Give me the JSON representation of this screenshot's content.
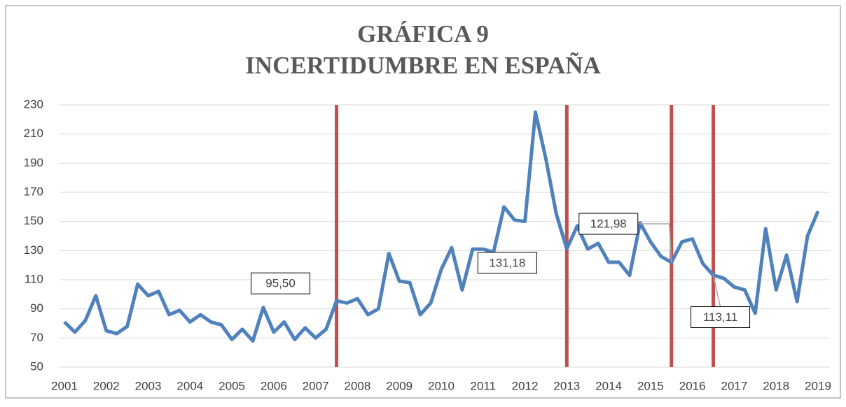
{
  "chart_data": {
    "type": "line",
    "title": [
      "GRÁFICA 9",
      "INCERTIDUMBRE EN ESPAÑA"
    ],
    "categories": [
      "2001",
      null,
      null,
      null,
      "2002",
      null,
      null,
      null,
      "2003",
      null,
      null,
      null,
      "2004",
      null,
      null,
      null,
      "2005",
      null,
      null,
      null,
      "2006",
      null,
      null,
      null,
      "2007",
      null,
      null,
      null,
      "2008",
      null,
      null,
      null,
      "2009",
      null,
      null,
      null,
      "2010",
      null,
      null,
      null,
      "2011",
      null,
      null,
      null,
      "2012",
      null,
      null,
      null,
      "2013",
      null,
      null,
      null,
      "2014",
      null,
      null,
      null,
      "2015",
      null,
      null,
      null,
      "2016",
      null,
      null,
      null,
      "2017",
      null,
      null,
      null,
      "2018",
      null,
      null,
      null,
      "2019"
    ],
    "series": [
      {
        "color": "#4f81bd",
        "values": [
          81,
          74,
          82,
          99,
          75,
          73,
          78,
          107,
          99,
          102,
          86,
          89,
          81,
          86,
          81,
          79,
          69,
          76,
          68,
          91,
          74,
          81,
          69,
          77,
          70,
          76,
          95.5,
          94,
          97,
          86,
          90,
          128,
          109,
          108,
          86,
          94,
          117,
          132,
          103,
          131,
          131,
          129,
          160,
          151,
          150,
          225,
          193,
          155,
          131.18,
          147,
          131,
          135,
          122,
          122,
          113,
          149,
          136,
          126,
          121.98,
          136,
          138,
          121,
          113.11,
          111,
          105,
          103,
          87,
          145,
          103,
          127,
          95,
          140,
          157
        ],
        "value_labels": [
          null,
          null,
          null,
          null,
          null,
          null,
          null,
          null,
          null,
          null,
          null,
          null,
          null,
          null,
          null,
          null,
          null,
          null,
          null,
          null,
          null,
          null,
          null,
          null,
          null,
          null,
          "95,50",
          null,
          null,
          null,
          null,
          null,
          null,
          null,
          null,
          null,
          null,
          null,
          null,
          null,
          null,
          null,
          null,
          null,
          null,
          null,
          null,
          null,
          "131,18",
          null,
          null,
          null,
          null,
          null,
          null,
          null,
          null,
          null,
          "121,98",
          null,
          null,
          null,
          "113,11",
          null,
          null,
          null,
          null,
          null,
          null,
          null,
          null,
          null,
          null
        ]
      }
    ],
    "marker_color": "#c0504d",
    "ylim": [
      50,
      230
    ],
    "yticks": [
      50,
      70,
      90,
      110,
      130,
      150,
      170,
      190,
      210,
      230
    ],
    "grid": true
  }
}
